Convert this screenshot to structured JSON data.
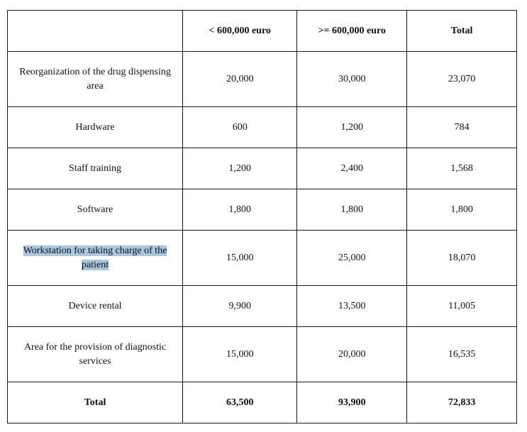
{
  "table": {
    "header": {
      "label": "",
      "col_a": "< 600,000 euro",
      "col_b": ">= 600,000 euro",
      "col_c": "Total"
    },
    "rows": [
      {
        "label": "Reorganization of the drug dispensing area",
        "a": "20,000",
        "b": "30,000",
        "total": "23,070"
      },
      {
        "label": "Hardware",
        "a": "600",
        "b": "1,200",
        "total": "784"
      },
      {
        "label": "Staff training",
        "a": "1,200",
        "b": "2,400",
        "total": "1,568"
      },
      {
        "label": "Software",
        "a": "1,800",
        "b": "1,800",
        "total": "1,800"
      },
      {
        "label": "Workstation for taking charge of the patient",
        "a": "15,000",
        "b": "25,000",
        "total": "18,070",
        "highlighted": true
      },
      {
        "label": "Device rental",
        "a": "9,900",
        "b": "13,500",
        "total": "11,005"
      },
      {
        "label": "Area for the provision of diagnostic services",
        "a": "15,000",
        "b": "20,000",
        "total": "16,535"
      }
    ],
    "total_row": {
      "label": "Total",
      "a": "63,500",
      "b": "93,900",
      "total": "72,833"
    }
  },
  "colors": {
    "selection_highlight": "#a8c6df",
    "border": "#1a1a1a"
  }
}
